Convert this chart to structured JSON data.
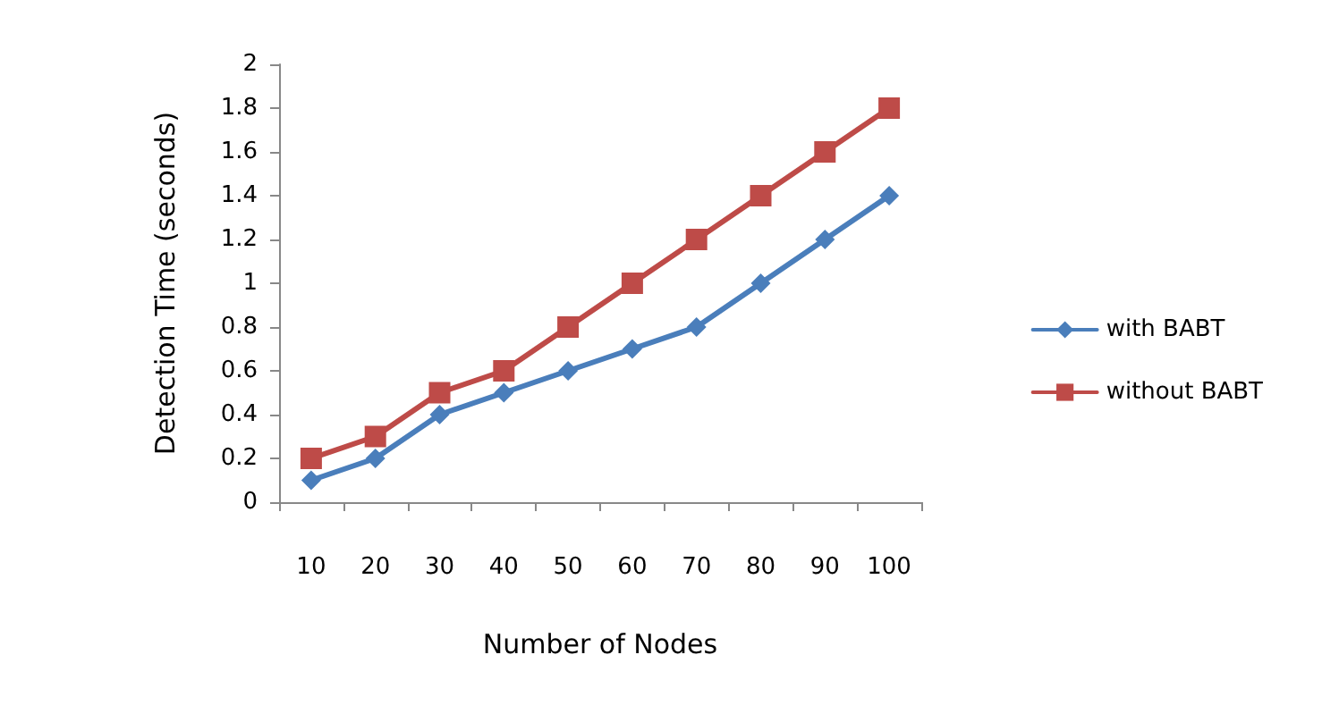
{
  "chart_data": {
    "type": "line",
    "xlabel": "Number of Nodes",
    "ylabel": "Detection Time (seconds)",
    "categories": [
      "10",
      "20",
      "30",
      "40",
      "50",
      "60",
      "70",
      "80",
      "90",
      "100"
    ],
    "series": [
      {
        "name": "with BABT",
        "color": "#4a7ebb",
        "marker": "diamond",
        "values": [
          0.1,
          0.2,
          0.4,
          0.5,
          0.6,
          0.7,
          0.8,
          1.0,
          1.2,
          1.4
        ]
      },
      {
        "name": "without BABT",
        "color": "#be4b48",
        "marker": "square",
        "values": [
          0.2,
          0.3,
          0.5,
          0.6,
          0.8,
          1.0,
          1.2,
          1.4,
          1.6,
          1.8
        ]
      }
    ],
    "ylim": [
      0,
      2
    ],
    "yticks": [
      0,
      0.2,
      0.4,
      0.6,
      0.8,
      1,
      1.2,
      1.4,
      1.6,
      1.8,
      2
    ],
    "grid": false,
    "legend": "right",
    "line_style": "solid"
  }
}
